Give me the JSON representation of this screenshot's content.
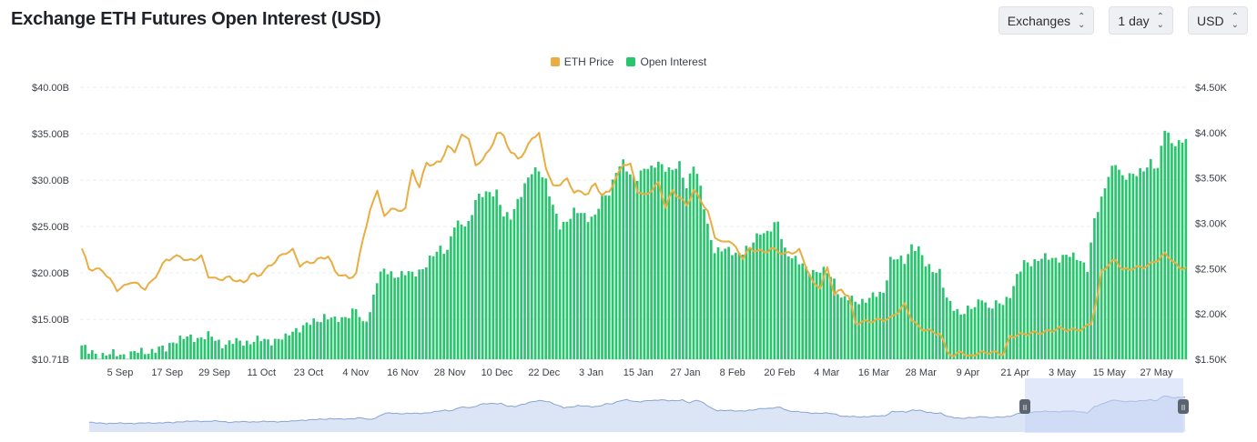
{
  "header": {
    "title": "Exchange ETH Futures Open Interest (USD)",
    "controls": [
      {
        "label": "Exchanges"
      },
      {
        "label": "1 day"
      },
      {
        "label": "USD"
      }
    ]
  },
  "colors": {
    "price": "#e9ad41",
    "oi": "#28c46e",
    "grid": "#eceef1",
    "navigator_fill": "#dbe5f5",
    "navigator_line": "#8aa3d3",
    "navigator_window": "#c7d6f6"
  },
  "chart_data": {
    "type": "bar",
    "title": "Exchange ETH Futures Open Interest (USD)",
    "legend": [
      "ETH Price",
      "Open Interest"
    ],
    "legend_position": "top-center",
    "grid": true,
    "x_ticks": [
      "5 Sep",
      "17 Sep",
      "29 Sep",
      "11 Oct",
      "23 Oct",
      "4 Nov",
      "16 Nov",
      "28 Nov",
      "10 Dec",
      "22 Dec",
      "3 Jan",
      "15 Jan",
      "27 Jan",
      "8 Feb",
      "20 Feb",
      "4 Mar",
      "16 Mar",
      "28 Mar",
      "9 Apr",
      "21 Apr",
      "3 May",
      "15 May",
      "27 May"
    ],
    "y_left_ticks": [
      "$10.71B",
      "$15.00B",
      "$20.00B",
      "$25.00B",
      "$30.00B",
      "$35.00B",
      "$40.00B"
    ],
    "y_left_range": [
      10.71,
      40.0
    ],
    "y_right_ticks": [
      "$1.50K",
      "$2.00K",
      "$2.50K",
      "$3.00K",
      "$3.50K",
      "$4.00K",
      "$4.50K"
    ],
    "y_right_range": [
      1.5,
      4.5
    ],
    "oi_anchors": [
      [
        0,
        12.2
      ],
      [
        2,
        11.4
      ],
      [
        8,
        11.2
      ],
      [
        14,
        11.3
      ],
      [
        20,
        11.7
      ],
      [
        24,
        11.8
      ],
      [
        26,
        12.8
      ],
      [
        36,
        13.2
      ],
      [
        40,
        12.4
      ],
      [
        46,
        12.6
      ],
      [
        54,
        12.8
      ],
      [
        58,
        12.9
      ],
      [
        60,
        13.9
      ],
      [
        64,
        14.3
      ],
      [
        69,
        15.4
      ],
      [
        72,
        14.8
      ],
      [
        76,
        15.6
      ],
      [
        78,
        16.0
      ],
      [
        80,
        14.4
      ],
      [
        82,
        16.0
      ],
      [
        84,
        19.2
      ],
      [
        86,
        20.2
      ],
      [
        90,
        19.8
      ],
      [
        94,
        19.9
      ],
      [
        98,
        20.8
      ],
      [
        102,
        22.8
      ],
      [
        104,
        22.5
      ],
      [
        106,
        25.0
      ],
      [
        110,
        25.5
      ],
      [
        112,
        27.8
      ],
      [
        116,
        28.8
      ],
      [
        118,
        28.8
      ],
      [
        120,
        26.0
      ],
      [
        122,
        26.0
      ],
      [
        124,
        28.0
      ],
      [
        128,
        30.7
      ],
      [
        130,
        31.3
      ],
      [
        132,
        30.0
      ],
      [
        134,
        27.0
      ],
      [
        136,
        25.0
      ],
      [
        140,
        26.6
      ],
      [
        144,
        26.0
      ],
      [
        146,
        26.3
      ],
      [
        148,
        28.0
      ],
      [
        150,
        28.5
      ],
      [
        152,
        31.3
      ],
      [
        154,
        31.9
      ],
      [
        156,
        30.2
      ],
      [
        158,
        30.4
      ],
      [
        160,
        31.5
      ],
      [
        162,
        31.0
      ],
      [
        164,
        31.9
      ],
      [
        166,
        31.5
      ],
      [
        168,
        31.0
      ],
      [
        170,
        31.5
      ],
      [
        172,
        29.4
      ],
      [
        174,
        31.9
      ],
      [
        176,
        29.0
      ],
      [
        178,
        25.0
      ],
      [
        180,
        22.6
      ],
      [
        186,
        22.2
      ],
      [
        190,
        22.6
      ],
      [
        193,
        24.6
      ],
      [
        195,
        24.4
      ],
      [
        198,
        25.3
      ],
      [
        200,
        22.6
      ],
      [
        204,
        21.0
      ],
      [
        206,
        20.5
      ],
      [
        208,
        20.3
      ],
      [
        212,
        20.0
      ],
      [
        214,
        19.3
      ],
      [
        216,
        17.3
      ],
      [
        220,
        17.0
      ],
      [
        224,
        17.2
      ],
      [
        228,
        18.0
      ],
      [
        230,
        21.5
      ],
      [
        234,
        21.3
      ],
      [
        236,
        23.1
      ],
      [
        238,
        22.5
      ],
      [
        240,
        20.8
      ],
      [
        244,
        20.2
      ],
      [
        246,
        17.0
      ],
      [
        248,
        16.3
      ],
      [
        250,
        15.8
      ],
      [
        254,
        16.2
      ],
      [
        256,
        17.6
      ],
      [
        258,
        16.2
      ],
      [
        262,
        16.8
      ],
      [
        264,
        17.8
      ],
      [
        266,
        19.5
      ],
      [
        268,
        21.0
      ],
      [
        272,
        21.5
      ],
      [
        276,
        21.6
      ],
      [
        280,
        21.8
      ],
      [
        284,
        21.6
      ],
      [
        286,
        20.5
      ],
      [
        288,
        25.5
      ],
      [
        290,
        28.0
      ],
      [
        292,
        30.8
      ],
      [
        294,
        31.7
      ],
      [
        296,
        30.1
      ],
      [
        298,
        30.8
      ],
      [
        302,
        30.8
      ],
      [
        304,
        32.0
      ],
      [
        306,
        31.5
      ],
      [
        308,
        35.5
      ],
      [
        310,
        33.8
      ],
      [
        312,
        34.2
      ],
      [
        314,
        34.6
      ]
    ],
    "price_anchors": [
      [
        0,
        2.72
      ],
      [
        2,
        2.5
      ],
      [
        6,
        2.48
      ],
      [
        10,
        2.27
      ],
      [
        12,
        2.3
      ],
      [
        14,
        2.36
      ],
      [
        18,
        2.28
      ],
      [
        20,
        2.36
      ],
      [
        24,
        2.6
      ],
      [
        28,
        2.64
      ],
      [
        30,
        2.58
      ],
      [
        34,
        2.63
      ],
      [
        36,
        2.42
      ],
      [
        38,
        2.38
      ],
      [
        42,
        2.4
      ],
      [
        46,
        2.34
      ],
      [
        48,
        2.44
      ],
      [
        50,
        2.42
      ],
      [
        52,
        2.48
      ],
      [
        56,
        2.62
      ],
      [
        58,
        2.68
      ],
      [
        60,
        2.7
      ],
      [
        62,
        2.54
      ],
      [
        64,
        2.56
      ],
      [
        66,
        2.58
      ],
      [
        70,
        2.64
      ],
      [
        72,
        2.47
      ],
      [
        74,
        2.42
      ],
      [
        76,
        2.4
      ],
      [
        78,
        2.44
      ],
      [
        80,
        2.85
      ],
      [
        82,
        3.13
      ],
      [
        84,
        3.38
      ],
      [
        86,
        3.06
      ],
      [
        88,
        3.18
      ],
      [
        90,
        3.12
      ],
      [
        92,
        3.18
      ],
      [
        94,
        3.58
      ],
      [
        96,
        3.4
      ],
      [
        98,
        3.67
      ],
      [
        100,
        3.64
      ],
      [
        102,
        3.69
      ],
      [
        104,
        3.84
      ],
      [
        106,
        3.8
      ],
      [
        108,
        3.96
      ],
      [
        110,
        3.95
      ],
      [
        112,
        3.62
      ],
      [
        114,
        3.72
      ],
      [
        116,
        3.8
      ],
      [
        118,
        4.0
      ],
      [
        120,
        3.96
      ],
      [
        122,
        3.78
      ],
      [
        124,
        3.72
      ],
      [
        126,
        3.78
      ],
      [
        128,
        3.95
      ],
      [
        130,
        3.98
      ],
      [
        132,
        3.62
      ],
      [
        134,
        3.4
      ],
      [
        138,
        3.48
      ],
      [
        140,
        3.35
      ],
      [
        144,
        3.33
      ],
      [
        146,
        3.44
      ],
      [
        148,
        3.3
      ],
      [
        150,
        3.36
      ],
      [
        152,
        3.5
      ],
      [
        154,
        3.66
      ],
      [
        156,
        3.64
      ],
      [
        158,
        3.36
      ],
      [
        160,
        3.3
      ],
      [
        164,
        3.44
      ],
      [
        166,
        3.18
      ],
      [
        168,
        3.36
      ],
      [
        170,
        3.28
      ],
      [
        172,
        3.2
      ],
      [
        174,
        3.36
      ],
      [
        176,
        3.26
      ],
      [
        178,
        3.12
      ],
      [
        180,
        2.86
      ],
      [
        182,
        2.78
      ],
      [
        184,
        2.82
      ],
      [
        186,
        2.72
      ],
      [
        188,
        2.62
      ],
      [
        190,
        2.72
      ],
      [
        194,
        2.68
      ],
      [
        196,
        2.72
      ],
      [
        200,
        2.66
      ],
      [
        204,
        2.7
      ],
      [
        206,
        2.52
      ],
      [
        208,
        2.33
      ],
      [
        210,
        2.3
      ],
      [
        212,
        2.5
      ],
      [
        214,
        2.22
      ],
      [
        216,
        2.26
      ],
      [
        218,
        2.2
      ],
      [
        220,
        1.9
      ],
      [
        224,
        1.92
      ],
      [
        230,
        1.95
      ],
      [
        234,
        2.1
      ],
      [
        236,
        1.94
      ],
      [
        238,
        1.85
      ],
      [
        242,
        1.8
      ],
      [
        244,
        1.78
      ],
      [
        246,
        1.6
      ],
      [
        248,
        1.52
      ],
      [
        250,
        1.6
      ],
      [
        252,
        1.52
      ],
      [
        254,
        1.56
      ],
      [
        258,
        1.58
      ],
      [
        262,
        1.56
      ],
      [
        264,
        1.75
      ],
      [
        268,
        1.78
      ],
      [
        274,
        1.8
      ],
      [
        278,
        1.84
      ],
      [
        282,
        1.82
      ],
      [
        285,
        1.84
      ],
      [
        287,
        1.9
      ],
      [
        289,
        2.22
      ],
      [
        290,
        2.48
      ],
      [
        292,
        2.54
      ],
      [
        294,
        2.6
      ],
      [
        296,
        2.48
      ],
      [
        298,
        2.5
      ],
      [
        302,
        2.52
      ],
      [
        304,
        2.55
      ],
      [
        306,
        2.6
      ],
      [
        308,
        2.66
      ],
      [
        310,
        2.6
      ],
      [
        312,
        2.5
      ],
      [
        314,
        2.52
      ]
    ]
  },
  "navigator": {
    "handle_glyph": "II"
  }
}
